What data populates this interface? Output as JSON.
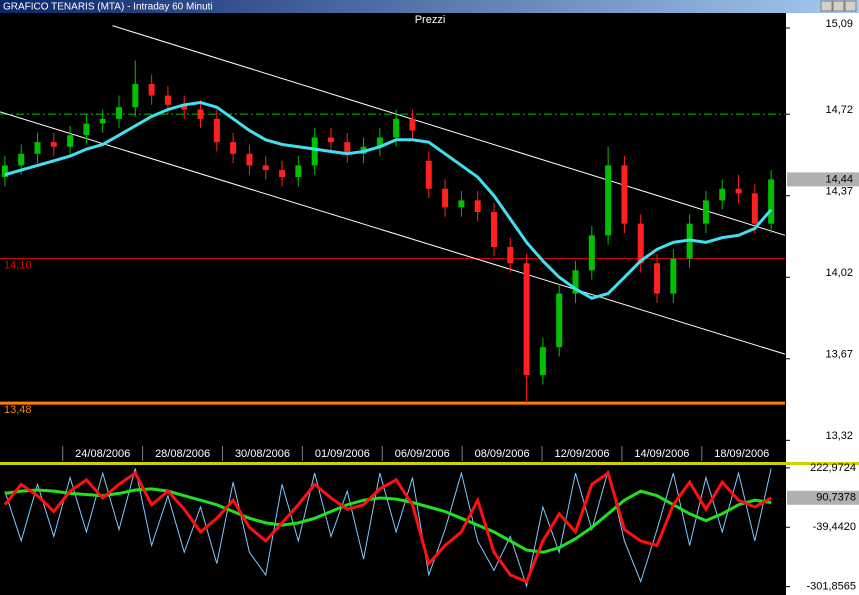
{
  "window_title": "GRAFICO TENARIS (MTA) - Intraday 60 Minuti",
  "chart_data": [
    {
      "type": "candlestick",
      "title": "Prezzi",
      "up_color": "#00c000",
      "down_color": "#ff2020",
      "xlim": [
        -0.3,
        47.85
      ],
      "ylim": [
        13.3,
        15.15
      ],
      "open": [
        14.45,
        14.5,
        14.55,
        14.6,
        14.58,
        14.63,
        14.68,
        14.7,
        14.75,
        14.85,
        14.8,
        14.76,
        14.74,
        14.7,
        14.6,
        14.55,
        14.5,
        14.48,
        14.45,
        14.5,
        14.62,
        14.6,
        14.55,
        14.58,
        14.62,
        14.7,
        14.52,
        14.4,
        14.32,
        14.35,
        14.3,
        14.15,
        14.08,
        13.6,
        13.72,
        13.95,
        14.05,
        14.2,
        14.5,
        14.25,
        14.08,
        13.95,
        14.1,
        14.25,
        14.35,
        14.4,
        14.38,
        14.25
      ],
      "high": [
        14.54,
        14.59,
        14.64,
        14.64,
        14.67,
        14.72,
        14.74,
        14.8,
        14.95,
        14.89,
        14.84,
        14.8,
        14.78,
        14.74,
        14.64,
        14.59,
        14.54,
        14.52,
        14.54,
        14.66,
        14.66,
        14.64,
        14.62,
        14.66,
        14.74,
        14.74,
        14.56,
        14.44,
        14.39,
        14.39,
        14.34,
        14.19,
        14.12,
        13.76,
        13.99,
        14.09,
        14.24,
        14.58,
        14.54,
        14.29,
        14.12,
        14.14,
        14.29,
        14.39,
        14.44,
        14.46,
        14.42,
        14.48
      ],
      "low": [
        14.41,
        14.46,
        14.51,
        14.54,
        14.54,
        14.59,
        14.64,
        14.66,
        14.71,
        14.76,
        14.72,
        14.7,
        14.66,
        14.56,
        14.51,
        14.46,
        14.44,
        14.41,
        14.41,
        14.46,
        14.56,
        14.51,
        14.51,
        14.54,
        14.58,
        14.61,
        14.36,
        14.28,
        14.28,
        14.26,
        14.11,
        14.04,
        13.48,
        13.56,
        13.68,
        13.91,
        14.01,
        14.16,
        14.21,
        14.04,
        13.91,
        13.91,
        14.06,
        14.21,
        14.31,
        14.34,
        14.21,
        14.21
      ],
      "close": [
        14.5,
        14.55,
        14.6,
        14.58,
        14.63,
        14.68,
        14.7,
        14.75,
        14.85,
        14.8,
        14.76,
        14.74,
        14.7,
        14.6,
        14.55,
        14.5,
        14.48,
        14.45,
        14.5,
        14.62,
        14.6,
        14.55,
        14.58,
        14.62,
        14.7,
        14.65,
        14.4,
        14.32,
        14.35,
        14.3,
        14.15,
        14.08,
        13.6,
        13.72,
        13.95,
        14.05,
        14.2,
        14.5,
        14.25,
        14.08,
        13.95,
        14.1,
        14.25,
        14.35,
        14.4,
        14.38,
        14.25,
        14.44
      ],
      "average": {
        "color": "#40e0f0",
        "values": [
          14.46,
          14.48,
          14.5,
          14.52,
          14.54,
          14.57,
          14.59,
          14.63,
          14.67,
          14.71,
          14.74,
          14.76,
          14.77,
          14.75,
          14.7,
          14.65,
          14.61,
          14.59,
          14.58,
          14.57,
          14.56,
          14.55,
          14.56,
          14.58,
          14.61,
          14.61,
          14.6,
          14.55,
          14.5,
          14.45,
          14.37,
          14.27,
          14.17,
          14.09,
          14.02,
          13.97,
          13.93,
          13.95,
          14.02,
          14.09,
          14.14,
          14.17,
          14.18,
          14.17,
          14.19,
          14.2,
          14.23,
          14.31
        ]
      },
      "trendlines": [
        {
          "color": "#ffffff",
          "x": [
            6.6,
            47.85
          ],
          "values": [
            15.1,
            14.2
          ]
        },
        {
          "color": "#ffffff",
          "x": [
            -0.3,
            47.85
          ],
          "values": [
            14.73,
            13.69
          ]
        }
      ],
      "levels": [
        {
          "value": 14.1,
          "label": "14,10",
          "color": "#e00000"
        },
        {
          "value": 13.48,
          "label": "13,48",
          "color": "#ff8000"
        },
        {
          "value": 14.72,
          "color": "#00c000"
        }
      ],
      "last_price": {
        "value": 14.44,
        "label": "14,44"
      },
      "yticks": [
        {
          "value": 15.09,
          "label": "15,09"
        },
        {
          "value": 14.72,
          "label": "14,72"
        },
        {
          "value": 14.37,
          "label": "14,37"
        },
        {
          "value": 14.02,
          "label": "14,02"
        },
        {
          "value": 13.67,
          "label": "13,67"
        },
        {
          "value": 13.32,
          "label": "13,32"
        }
      ],
      "xticks": [
        {
          "value": 6.0,
          "label": "24/08/2006"
        },
        {
          "value": 10.9,
          "label": "28/08/2006"
        },
        {
          "value": 15.8,
          "label": "30/08/2006"
        },
        {
          "value": 20.7,
          "label": "01/09/2006"
        },
        {
          "value": 25.6,
          "label": "06/09/2006"
        },
        {
          "value": 30.5,
          "label": "08/09/2006"
        },
        {
          "value": 35.4,
          "label": "12/09/2006"
        },
        {
          "value": 40.3,
          "label": "14/09/2006"
        },
        {
          "value": 45.2,
          "label": "18/09/2006"
        }
      ]
    },
    {
      "type": "line",
      "xlim": [
        -0.3,
        47.85
      ],
      "ylim": [
        -330,
        240
      ],
      "series": [
        {
          "color": "#80c8ff",
          "values": [
            120,
            -100,
            150,
            -80,
            180,
            -60,
            200,
            -50,
            220,
            -120,
            100,
            -150,
            50,
            -200,
            160,
            -150,
            -250,
            150,
            -100,
            200,
            -80,
            120,
            -180,
            200,
            -60,
            180,
            -250,
            -50,
            200,
            -100,
            -230,
            -80,
            -300,
            50,
            -150,
            200,
            -50,
            210,
            -100,
            -280,
            -50,
            200,
            -120,
            180,
            -60,
            200,
            -100,
            220
          ]
        },
        {
          "color": "#20e020",
          "values": [
            110,
            120,
            125,
            120,
            110,
            105,
            100,
            110,
            125,
            130,
            120,
            100,
            80,
            60,
            30,
            0,
            -20,
            -30,
            -20,
            0,
            30,
            60,
            80,
            90,
            85,
            70,
            50,
            30,
            0,
            -30,
            -60,
            -100,
            -140,
            -150,
            -130,
            -90,
            -40,
            20,
            80,
            120,
            100,
            60,
            20,
            -10,
            20,
            60,
            80,
            70
          ]
        },
        {
          "color": "#ff1010",
          "values": [
            60,
            150,
            100,
            30,
            120,
            170,
            90,
            150,
            200,
            60,
            120,
            40,
            -60,
            0,
            80,
            -40,
            -100,
            -20,
            60,
            150,
            90,
            40,
            60,
            130,
            170,
            60,
            -200,
            -120,
            -60,
            80,
            -150,
            -250,
            -280,
            -100,
            20,
            -60,
            150,
            200,
            -50,
            -100,
            -120,
            60,
            160,
            40,
            160,
            80,
            50,
            90
          ]
        }
      ],
      "last_value": {
        "value": 90.7378,
        "label": "90,7378"
      },
      "yticks": [
        {
          "value": 222.9724,
          "label": "222,9724"
        },
        {
          "value": -39.442,
          "label": "-39,4420"
        },
        {
          "value": -301.8565,
          "label": "-301,8565"
        }
      ]
    }
  ]
}
